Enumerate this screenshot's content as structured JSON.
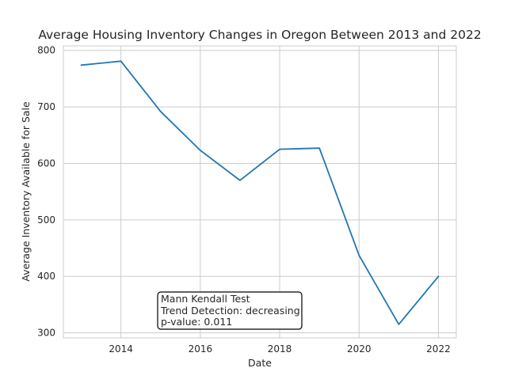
{
  "chart_data": {
    "type": "line",
    "title": "Average Housing Inventory Changes in Oregon Between 2013 and 2022",
    "xlabel": "Date",
    "ylabel": "Average Inventory Available for Sale",
    "x": [
      2013,
      2014,
      2015,
      2016,
      2017,
      2018,
      2019,
      2020,
      2021,
      2022
    ],
    "values": [
      774,
      781,
      692,
      623,
      570,
      625,
      627,
      437,
      315,
      400
    ],
    "xlim": [
      2012.55,
      2022.45
    ],
    "ylim": [
      291,
      808
    ],
    "xticks": [
      2014,
      2016,
      2018,
      2020,
      2022
    ],
    "yticks": [
      300,
      400,
      500,
      600,
      700,
      800
    ],
    "grid": true,
    "line_color": "#1f77b4",
    "annotation": {
      "lines": [
        "Mann Kendall Test",
        "Trend Detection: decreasing",
        "p-value: 0.011"
      ]
    }
  }
}
